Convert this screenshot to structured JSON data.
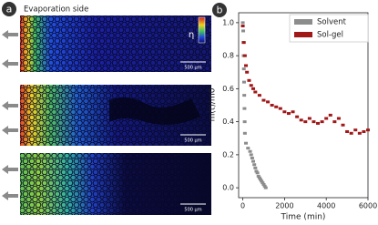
{
  "panel_a": {
    "label": "a",
    "title": "Evaporation side",
    "colorbar_label": "η",
    "scale_bars": [
      "500 μm",
      "500 μm",
      "500 μm"
    ]
  },
  "chart_data": {
    "type": "scatter",
    "panel_label": "b",
    "xlabel": "Time (min)",
    "ylabel": "m(t)/m0",
    "xlim": [
      -200,
      6000
    ],
    "ylim": [
      -0.06,
      1.06
    ],
    "xticks": [
      0,
      2000,
      4000,
      6000
    ],
    "yticks": [
      {
        "value": 0,
        "label": "0.0"
      },
      0.2,
      0.4,
      0.6,
      0.8,
      {
        "value": 1,
        "label": "1.0"
      }
    ],
    "legend": "upper right",
    "series": [
      {
        "name": "Solvent",
        "color": "#8c8c8c",
        "x": [
          0,
          20,
          30,
          40,
          50,
          60,
          70,
          80,
          90,
          100,
          150,
          250,
          350,
          400,
          450,
          500,
          550,
          600,
          650,
          700,
          750,
          800,
          850,
          900,
          950,
          1000,
          1050,
          1100
        ],
        "values": [
          1.0,
          0.95,
          0.88,
          0.8,
          0.72,
          0.64,
          0.56,
          0.48,
          0.4,
          0.33,
          0.27,
          0.24,
          0.22,
          0.2,
          0.18,
          0.16,
          0.14,
          0.12,
          0.1,
          0.09,
          0.07,
          0.06,
          0.05,
          0.04,
          0.03,
          0.02,
          0.01,
          0.0
        ]
      },
      {
        "name": "Sol-gel",
        "color": "#a01818",
        "x": [
          0,
          50,
          100,
          150,
          200,
          300,
          400,
          500,
          600,
          800,
          1000,
          1200,
          1400,
          1600,
          1800,
          2000,
          2200,
          2400,
          2600,
          2800,
          3000,
          3200,
          3400,
          3600,
          3800,
          4000,
          4200,
          4400,
          4600,
          4800,
          5000,
          5200,
          5400,
          5600,
          5800,
          6000
        ],
        "values": [
          0.98,
          0.88,
          0.8,
          0.74,
          0.7,
          0.65,
          0.62,
          0.6,
          0.58,
          0.56,
          0.53,
          0.52,
          0.5,
          0.49,
          0.48,
          0.46,
          0.45,
          0.46,
          0.43,
          0.41,
          0.4,
          0.42,
          0.4,
          0.39,
          0.4,
          0.42,
          0.44,
          0.4,
          0.42,
          0.38,
          0.34,
          0.33,
          0.35,
          0.33,
          0.34,
          0.35
        ]
      }
    ]
  }
}
